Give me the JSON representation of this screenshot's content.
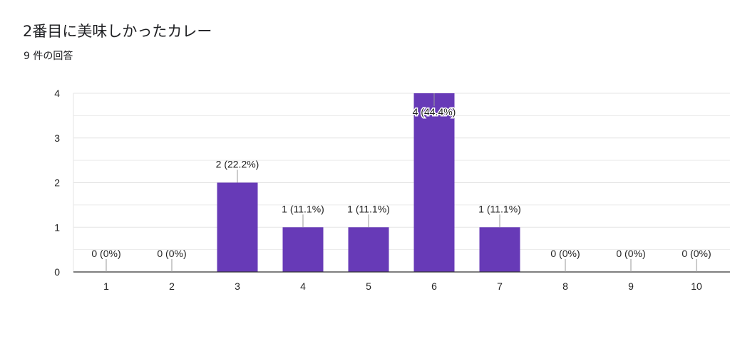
{
  "title": "2番目に美味しかったカレー",
  "subtitle": "9 件の回答",
  "chart_data": {
    "type": "bar",
    "categories": [
      "1",
      "2",
      "3",
      "4",
      "5",
      "6",
      "7",
      "8",
      "9",
      "10"
    ],
    "values": [
      0,
      0,
      2,
      1,
      1,
      4,
      1,
      0,
      0,
      0
    ],
    "data_labels": [
      "0 (0%)",
      "0 (0%)",
      "2 (22.2%)",
      "1 (11.1%)",
      "1 (11.1%)",
      "4 (44.4%)",
      "1 (11.1%)",
      "0 (0%)",
      "0 (0%)",
      "0 (0%)"
    ],
    "ylim": [
      0,
      4
    ],
    "yticks": [
      "0",
      "1",
      "2",
      "3",
      "4"
    ],
    "grid": true,
    "bar_color": "#673ab7",
    "grid_color": "#e6e6e6",
    "axis_color": "#333333"
  }
}
